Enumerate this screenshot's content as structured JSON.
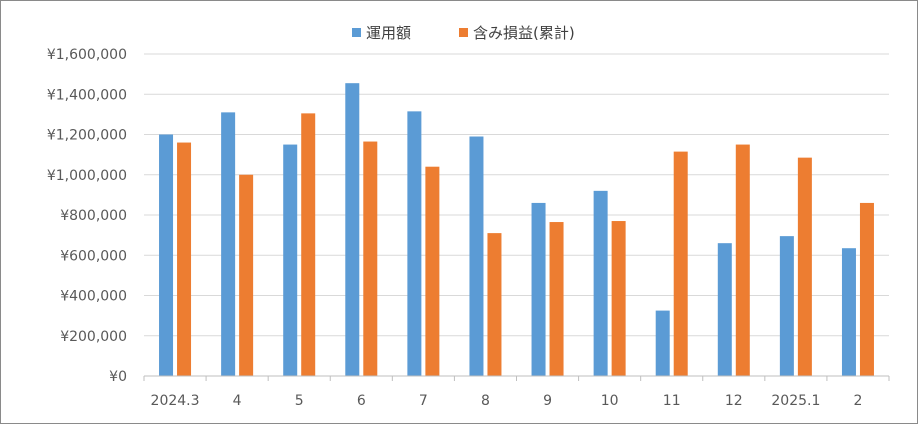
{
  "chart_data": {
    "type": "bar",
    "title": "",
    "xlabel": "",
    "ylabel": "",
    "categories": [
      "2024.3",
      "4",
      "5",
      "6",
      "7",
      "8",
      "9",
      "10",
      "11",
      "12",
      "2025.1",
      "2"
    ],
    "series": [
      {
        "name": "運用額",
        "color": "#5B9BD5",
        "values": [
          1200000,
          1310000,
          1150000,
          1455000,
          1315000,
          1190000,
          860000,
          920000,
          325000,
          660000,
          695000,
          635000
        ]
      },
      {
        "name": "含み損益(累計)",
        "color": "#ED7D31",
        "values": [
          1160000,
          1000000,
          1305000,
          1165000,
          1040000,
          710000,
          765000,
          770000,
          1115000,
          1150000,
          1085000,
          860000
        ]
      }
    ],
    "ylim": [
      0,
      1600000
    ],
    "yticks": [
      0,
      200000,
      400000,
      600000,
      800000,
      1000000,
      1200000,
      1400000,
      1600000
    ],
    "ytick_labels": [
      "¥0",
      "¥200,000",
      "¥400,000",
      "¥600,000",
      "¥800,000",
      "¥1,000,000",
      "¥1,200,000",
      "¥1,400,000",
      "¥1,600,000"
    ],
    "grid": true,
    "legend_position": "top-center"
  }
}
